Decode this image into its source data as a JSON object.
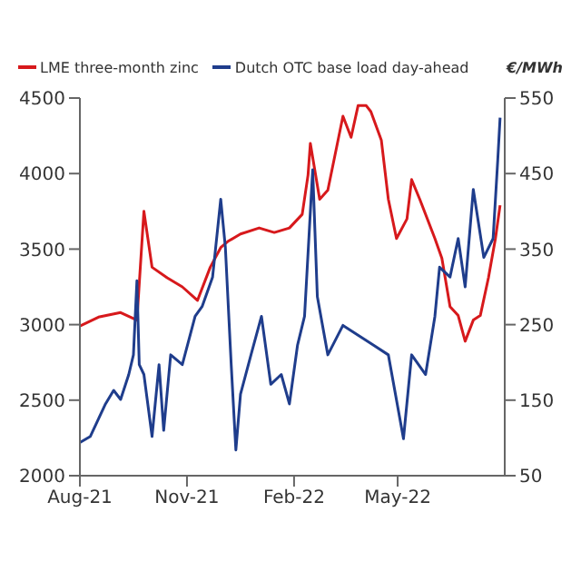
{
  "chart_data": {
    "type": "line",
    "y2label": "€/MWh",
    "legend": "top",
    "marker": "none",
    "line_style": "solid",
    "xlim": [
      "2021-08-01",
      "2022-08-01"
    ],
    "xticks": [
      {
        "value": "2021-08-01",
        "label": "Aug-21"
      },
      {
        "value": "2021-11-01",
        "label": "Nov-21"
      },
      {
        "value": "2022-02-01",
        "label": "Feb-22"
      },
      {
        "value": "2022-05-01",
        "label": "May-22"
      }
    ],
    "ylim": [
      2000,
      4500
    ],
    "yticks": [
      2000,
      2500,
      3000,
      3500,
      4000,
      4500
    ],
    "y2lim": [
      50,
      550
    ],
    "y2ticks": [
      50,
      150,
      250,
      350,
      450,
      550
    ],
    "series": [
      {
        "name": "LME three-month zinc",
        "color": "#d7191c",
        "x": [
          "2021-08-01",
          "2021-08-17",
          "2021-09-05",
          "2021-09-19",
          "2021-09-25",
          "2021-10-02",
          "2021-10-15",
          "2021-10-28",
          "2021-11-10",
          "2021-11-21",
          "2021-11-30",
          "2021-12-06",
          "2021-12-17",
          "2022-01-02",
          "2022-01-15",
          "2022-01-28",
          "2022-02-08",
          "2022-02-13",
          "2022-02-15",
          "2022-02-23",
          "2022-03-02",
          "2022-03-15",
          "2022-03-22",
          "2022-03-28",
          "2022-04-04",
          "2022-04-08",
          "2022-04-17",
          "2022-04-23",
          "2022-04-30",
          "2022-05-09",
          "2022-05-13",
          "2022-05-20",
          "2022-06-02",
          "2022-06-08",
          "2022-06-15",
          "2022-06-22",
          "2022-06-28",
          "2022-07-05",
          "2022-07-11",
          "2022-07-18",
          "2022-07-24",
          "2022-07-28"
        ],
        "values": [
          2990,
          3050,
          3080,
          3030,
          3750,
          3380,
          3310,
          3250,
          3160,
          3380,
          3510,
          3550,
          3600,
          3640,
          3610,
          3640,
          3730,
          3990,
          4200,
          3830,
          3890,
          4380,
          4240,
          4450,
          4450,
          4410,
          4220,
          3830,
          3570,
          3700,
          3960,
          3830,
          3570,
          3440,
          3120,
          3060,
          2890,
          3030,
          3060,
          3310,
          3570,
          3790
        ]
      },
      {
        "name": "Dutch OTC base load day-ahead",
        "color": "#1f3d8c",
        "axis": "y2",
        "x": [
          "2021-08-01",
          "2021-08-10",
          "2021-08-23",
          "2021-08-30",
          "2021-09-05",
          "2021-09-12",
          "2021-09-16",
          "2021-09-19",
          "2021-09-21",
          "2021-09-25",
          "2021-10-02",
          "2021-10-08",
          "2021-10-12",
          "2021-10-18",
          "2021-10-28",
          "2021-11-08",
          "2021-11-14",
          "2021-11-23",
          "2021-11-30",
          "2021-12-04",
          "2021-12-09",
          "2021-12-13",
          "2021-12-17",
          "2021-12-26",
          "2022-01-04",
          "2022-01-12",
          "2022-01-21",
          "2022-01-28",
          "2022-02-04",
          "2022-02-10",
          "2022-02-17",
          "2022-02-21",
          "2022-03-02",
          "2022-03-15",
          "2022-03-28",
          "2022-04-10",
          "2022-04-23",
          "2022-05-06",
          "2022-05-13",
          "2022-05-25",
          "2022-06-02",
          "2022-06-06",
          "2022-06-15",
          "2022-06-22",
          "2022-06-28",
          "2022-07-05",
          "2022-07-14",
          "2022-07-22",
          "2022-07-26",
          "2022-07-28"
        ],
        "values": [
          94,
          102,
          145,
          163,
          151,
          184,
          210,
          308,
          197,
          184,
          102,
          197,
          110,
          210,
          197,
          261,
          274,
          313,
          416,
          352,
          197,
          84,
          158,
          210,
          261,
          171,
          184,
          145,
          223,
          261,
          455,
          287,
          210,
          249,
          236,
          223,
          210,
          99,
          210,
          184,
          261,
          326,
          313,
          364,
          300,
          429,
          339,
          364,
          468,
          524
        ]
      }
    ]
  }
}
